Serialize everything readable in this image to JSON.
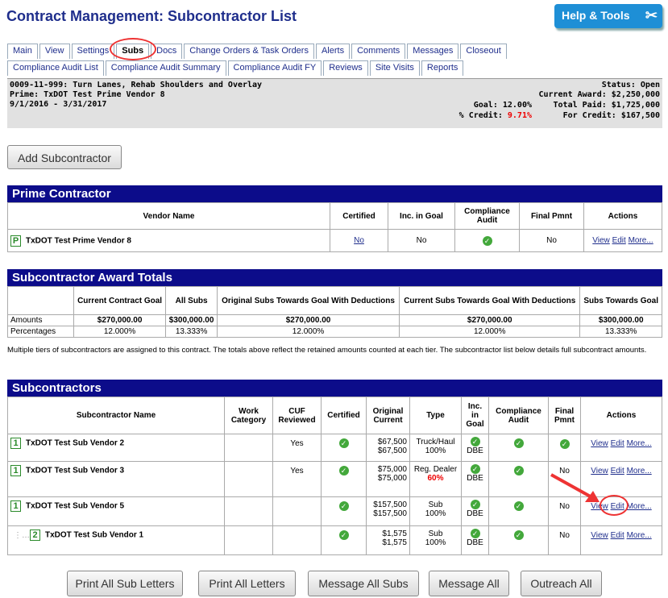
{
  "header": {
    "title": "Contract Management: Subcontractor List",
    "help_label": "Help & Tools"
  },
  "tabs_row1": [
    "Main",
    "View",
    "Settings",
    "Subs",
    "Docs",
    "Change Orders & Task Orders",
    "Alerts",
    "Comments",
    "Messages",
    "Closeout"
  ],
  "tabs_row2": [
    "Compliance Audit List",
    "Compliance Audit Summary",
    "Compliance Audit FY",
    "Reviews",
    "Site Visits",
    "Reports"
  ],
  "info": {
    "project": "0009-11-999: Turn Lanes, Rehab Shoulders and Overlay",
    "prime": "Prime: TxDOT Test Prime Vendor 8",
    "dates": "9/1/2016 - 3/31/2017",
    "status_label": "Status:",
    "status": "Open",
    "current_award_label": "Current Award:",
    "current_award": "$2,250,000",
    "goal_label": "Goal:",
    "goal": "12.00%",
    "total_paid_label": "Total Paid:",
    "total_paid": "$1,725,000",
    "credit_label": "% Credit:",
    "credit": "9.71%",
    "for_credit_label": "For Credit:",
    "for_credit": "$167,500"
  },
  "add_button": "Add Subcontractor",
  "prime": {
    "title": "Prime Contractor",
    "headers": [
      "Vendor Name",
      "Certified",
      "Inc. in Goal",
      "Compliance Audit",
      "Final Pmnt",
      "Actions"
    ],
    "badge": "P",
    "name": "TxDOT Test Prime Vendor 8",
    "certified": "No",
    "inc_goal": "No",
    "final_pmnt": "No"
  },
  "actions": {
    "view": "View",
    "edit": "Edit",
    "more": "More..."
  },
  "totals": {
    "title": "Subcontractor Award Totals",
    "headers": [
      "Current Contract Goal",
      "All Subs",
      "Original Subs Towards Goal With Deductions",
      "Current Subs Towards Goal With Deductions",
      "Subs Towards Goal"
    ],
    "amounts_label": "Amounts",
    "amounts": [
      "$270,000.00",
      "$300,000.00",
      "$270,000.00",
      "$270,000.00",
      "$300,000.00"
    ],
    "pct_label": "Percentages",
    "pcts": [
      "12.000%",
      "13.333%",
      "12.000%",
      "12.000%",
      "13.333%"
    ]
  },
  "note": "Multiple tiers of subcontractors are assigned to this contract. The totals above reflect the retained amounts counted at each tier. The subcontractor list below details full subcontract amounts.",
  "subs": {
    "title": "Subcontractors",
    "headers": [
      "Subcontractor Name",
      "Work Category",
      "CUF Reviewed",
      "Certified",
      "Original Current",
      "Type",
      "Inc. in Goal",
      "Compliance Audit",
      "Final Pmnt",
      "Actions"
    ],
    "rows": [
      {
        "tier": "1",
        "name": "TxDOT Test Sub Vendor 2",
        "cuf": "Yes",
        "orig": "$67,500",
        "curr": "$67,500",
        "type": "Truck/Haul",
        "pct": "100%",
        "goal": "DBE",
        "final": "",
        "final_check": true
      },
      {
        "tier": "1",
        "name": "TxDOT Test Sub Vendor 3",
        "cuf": "Yes",
        "orig": "$75,000",
        "curr": "$75,000",
        "type": "Reg. Dealer",
        "pct": "60%",
        "goal": "DBE",
        "final": "No",
        "final_check": false
      },
      {
        "tier": "1",
        "name": "TxDOT Test Sub Vendor 5",
        "cuf": "",
        "orig": "$157,500",
        "curr": "$157,500",
        "type": "Sub",
        "pct": "100%",
        "goal": "DBE",
        "final": "No",
        "final_check": false
      },
      {
        "tier": "2",
        "name": "TxDOT Test Sub Vendor 1",
        "cuf": "",
        "orig": "$1,575",
        "curr": "$1,575",
        "type": "Sub",
        "pct": "100%",
        "goal": "DBE",
        "final": "No",
        "final_check": false
      }
    ]
  },
  "bottom_buttons": [
    "Print All Sub Letters",
    "Print All Letters",
    "Message All Subs",
    "Message All",
    "Outreach All"
  ]
}
